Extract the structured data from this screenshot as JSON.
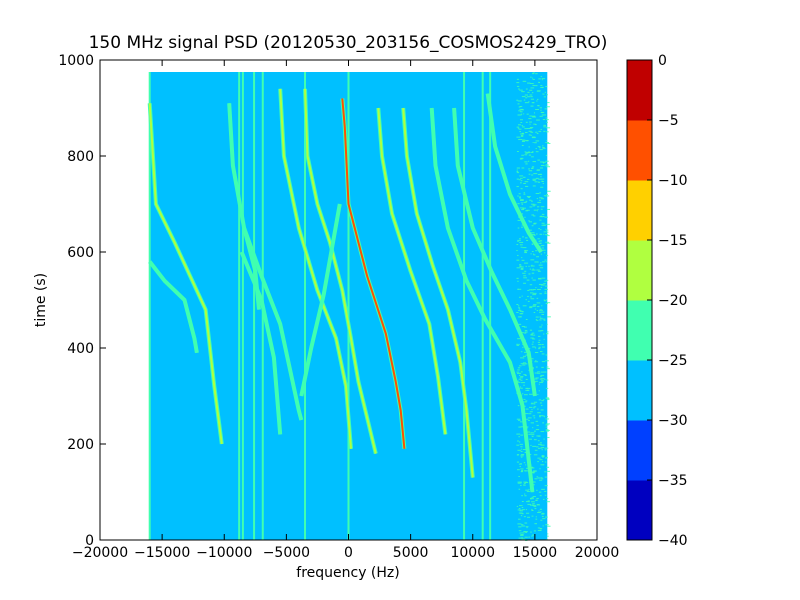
{
  "chart_data": {
    "type": "heatmap",
    "title": "150 MHz signal PSD (20120530_203156_COSMOS2429_TRO)",
    "xlabel": "frequency (Hz)",
    "ylabel": "time (s)",
    "xlim": [
      -20000,
      20000
    ],
    "ylim": [
      0,
      1000
    ],
    "x_ticks": [
      -20000,
      -15000,
      -10000,
      -5000,
      0,
      5000,
      10000,
      15000,
      20000
    ],
    "x_tick_labels": [
      "−20000",
      "−15000",
      "−10000",
      "−5000",
      "0",
      "5000",
      "10000",
      "15000",
      "20000"
    ],
    "y_ticks": [
      0,
      200,
      400,
      600,
      800,
      1000
    ],
    "y_tick_labels": [
      "0",
      "200",
      "400",
      "600",
      "800",
      "1000"
    ],
    "data_extent": {
      "x": [
        -16000,
        16000
      ],
      "y": [
        0,
        975
      ]
    },
    "background_level": -27,
    "grid": false,
    "colorbar": {
      "levels": [
        -40,
        -35,
        -30,
        -25,
        -20,
        -15,
        -10,
        -5,
        0
      ],
      "tick_labels": [
        "−40",
        "−35",
        "−30",
        "−25",
        "−20",
        "−15",
        "−10",
        "−5",
        "0"
      ],
      "colors": [
        "#0000c0",
        "#0040ff",
        "#00c0ff",
        "#40ffb0",
        "#b0ff40",
        "#ffd000",
        "#ff5000",
        "#c00000"
      ]
    },
    "vertical_lines": [
      {
        "freq": -16000,
        "level": -22
      },
      {
        "freq": -8800,
        "level": -22
      },
      {
        "freq": -8500,
        "level": -22
      },
      {
        "freq": -7600,
        "level": -22
      },
      {
        "freq": -6900,
        "level": -22
      },
      {
        "freq": -3500,
        "level": -22
      },
      {
        "freq": 0,
        "level": -22
      },
      {
        "freq": 9300,
        "level": -22
      },
      {
        "freq": 10800,
        "level": -22
      },
      {
        "freq": 11400,
        "level": -22
      }
    ],
    "tracks": [
      {
        "level": -18,
        "points": [
          [
            -16000,
            910
          ],
          [
            -15500,
            700
          ],
          [
            -14000,
            620
          ],
          [
            -11500,
            480
          ],
          [
            -10800,
            320
          ],
          [
            -10200,
            200
          ]
        ]
      },
      {
        "level": -22,
        "points": [
          [
            -16000,
            580
          ],
          [
            -14800,
            540
          ],
          [
            -13200,
            500
          ],
          [
            -12400,
            420
          ],
          [
            -12200,
            390
          ]
        ]
      },
      {
        "level": -22,
        "points": [
          [
            -9600,
            910
          ],
          [
            -9300,
            780
          ],
          [
            -8400,
            650
          ],
          [
            -7000,
            550
          ],
          [
            -5500,
            450
          ],
          [
            -4000,
            270
          ],
          [
            -3800,
            250
          ]
        ]
      },
      {
        "level": -24,
        "points": [
          [
            -8600,
            600
          ],
          [
            -7000,
            500
          ],
          [
            -6000,
            380
          ],
          [
            -5500,
            220
          ]
        ]
      },
      {
        "level": -16,
        "points": [
          [
            -5500,
            940
          ],
          [
            -5200,
            800
          ],
          [
            -4000,
            650
          ],
          [
            -2500,
            520
          ],
          [
            -1000,
            420
          ],
          [
            -200,
            320
          ],
          [
            200,
            190
          ]
        ]
      },
      {
        "level": -16,
        "points": [
          [
            -3500,
            940
          ],
          [
            -3300,
            800
          ],
          [
            -2500,
            700
          ],
          [
            -1500,
            620
          ],
          [
            -500,
            520
          ],
          [
            200,
            420
          ],
          [
            800,
            330
          ],
          [
            2200,
            180
          ]
        ]
      },
      {
        "level": -22,
        "points": [
          [
            -700,
            700
          ],
          [
            -2000,
            510
          ],
          [
            -3000,
            400
          ],
          [
            -3800,
            300
          ]
        ]
      },
      {
        "level": -8,
        "points": [
          [
            -500,
            920
          ],
          [
            -300,
            860
          ],
          [
            0,
            700
          ],
          [
            1500,
            550
          ],
          [
            3000,
            430
          ],
          [
            3800,
            330
          ],
          [
            4200,
            270
          ],
          [
            4500,
            190
          ]
        ]
      },
      {
        "level": -20,
        "points": [
          [
            2400,
            900
          ],
          [
            2700,
            800
          ],
          [
            3500,
            680
          ],
          [
            5000,
            560
          ],
          [
            6500,
            450
          ],
          [
            7200,
            340
          ],
          [
            7800,
            220
          ]
        ]
      },
      {
        "level": -18,
        "points": [
          [
            4400,
            900
          ],
          [
            4700,
            800
          ],
          [
            5500,
            680
          ],
          [
            6800,
            570
          ],
          [
            8000,
            480
          ],
          [
            9000,
            370
          ],
          [
            9500,
            270
          ],
          [
            10000,
            130
          ]
        ]
      },
      {
        "level": -22,
        "points": [
          [
            6700,
            900
          ],
          [
            7000,
            780
          ],
          [
            8000,
            650
          ],
          [
            9500,
            540
          ],
          [
            11000,
            460
          ],
          [
            13000,
            370
          ],
          [
            14000,
            280
          ],
          [
            14800,
            100
          ]
        ]
      },
      {
        "level": -22,
        "points": [
          [
            8500,
            900
          ],
          [
            8800,
            780
          ],
          [
            10000,
            650
          ],
          [
            11500,
            560
          ],
          [
            13000,
            480
          ],
          [
            14500,
            390
          ],
          [
            15000,
            300
          ]
        ]
      },
      {
        "level": -24,
        "points": [
          [
            11200,
            930
          ],
          [
            11800,
            820
          ],
          [
            13000,
            720
          ],
          [
            14500,
            640
          ],
          [
            15500,
            600
          ]
        ]
      },
      {
        "level": -24,
        "points": [
          [
            -8400,
            650
          ],
          [
            -7500,
            560
          ],
          [
            -7200,
            480
          ]
        ]
      }
    ],
    "noise_band": {
      "freq": [
        13500,
        16000
      ],
      "level": -24
    }
  }
}
